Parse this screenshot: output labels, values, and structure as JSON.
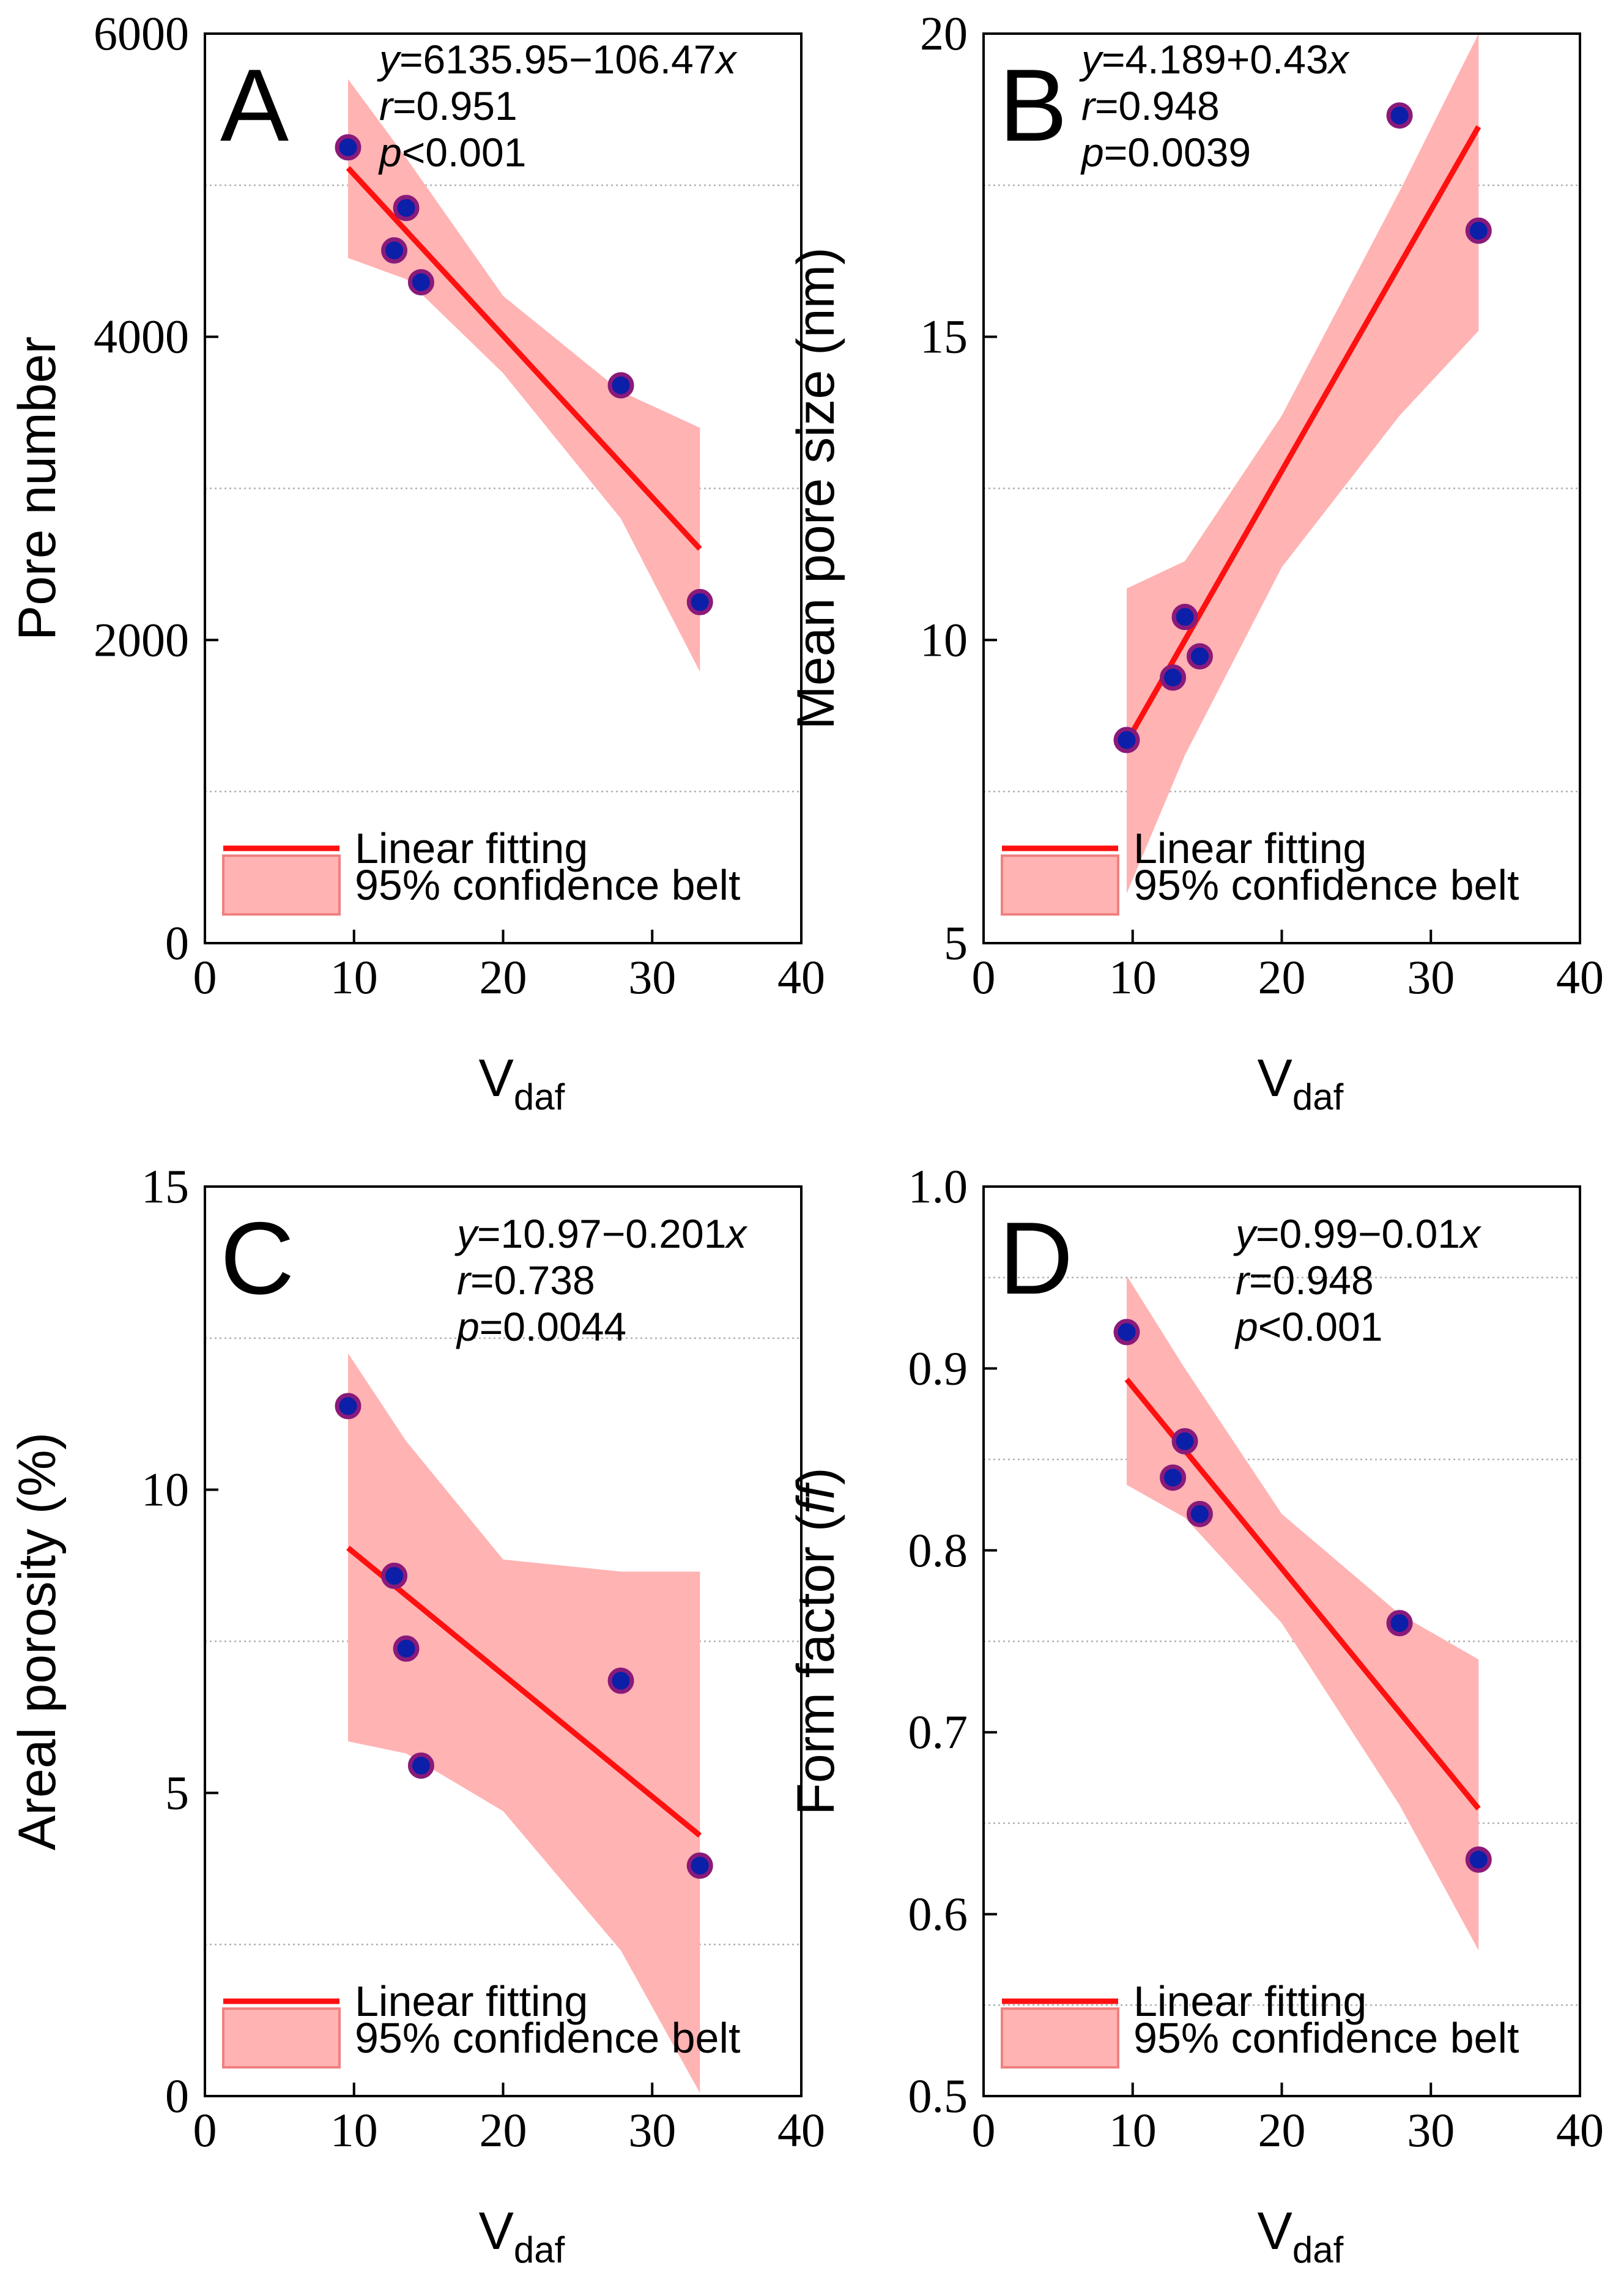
{
  "style": {
    "fit_color": "#ff1010",
    "band_fill": "#ffb3b3",
    "band_stroke": "#f08080",
    "point_fill": "#0b1fa8",
    "point_stroke": "#8a1a7a",
    "grid_color": "#b0b0b0"
  },
  "chart_data": [
    {
      "id": "A",
      "type": "scatter",
      "panel_letter": "A",
      "ylabel": "Pore number",
      "xlabel_main": "V",
      "xlabel_sub": "daf",
      "xlim": [
        0,
        40
      ],
      "ylim": [
        0,
        6000
      ],
      "xticks": [
        0,
        10,
        20,
        30,
        40
      ],
      "xtick_labels": [
        "0",
        "10",
        "20",
        "30",
        "40"
      ],
      "yticks": [
        0,
        2000,
        4000,
        6000
      ],
      "ytick_labels": [
        "0",
        "2000",
        "4000",
        "6000"
      ],
      "grid_y": [
        1000,
        3000,
        5000
      ],
      "points": [
        [
          9.6,
          5250
        ],
        [
          12.7,
          4570
        ],
        [
          13.5,
          4850
        ],
        [
          14.5,
          4360
        ],
        [
          27.9,
          3680
        ],
        [
          33.2,
          2250
        ]
      ],
      "fit": {
        "intercept": 6135.95,
        "slope": -106.47,
        "x_range": [
          9.6,
          33.2
        ]
      },
      "band": {
        "x": [
          9.6,
          13.5,
          20,
          27.9,
          33.2
        ],
        "lower": [
          4520,
          4380,
          3760,
          2800,
          1790
        ],
        "upper": [
          5700,
          5180,
          4270,
          3640,
          3400
        ]
      },
      "equation": {
        "y_var": "y",
        "eq_body": "=6135.95−106.47",
        "x_var": "x",
        "r_var": "r",
        "r_value": "=0.951",
        "p_var": "p",
        "p_value": "<0.001"
      },
      "legend": {
        "line_label": "Linear fitting",
        "band_label": "95% confidence belt"
      }
    },
    {
      "id": "B",
      "type": "scatter",
      "panel_letter": "B",
      "ylabel": "Mean pore size (nm)",
      "xlabel_main": "V",
      "xlabel_sub": "daf",
      "xlim": [
        0,
        40
      ],
      "ylim": [
        5,
        20
      ],
      "xticks": [
        0,
        10,
        20,
        30,
        40
      ],
      "xtick_labels": [
        "0",
        "10",
        "20",
        "30",
        "40"
      ],
      "yticks": [
        5,
        10,
        15,
        20
      ],
      "ytick_labels": [
        "5",
        "10",
        "15",
        "20"
      ],
      "grid_y": [
        7.5,
        12.5,
        17.5
      ],
      "points": [
        [
          9.6,
          8.35
        ],
        [
          12.7,
          9.38
        ],
        [
          13.5,
          10.38
        ],
        [
          14.5,
          9.73
        ],
        [
          27.9,
          18.65
        ],
        [
          33.2,
          16.75
        ]
      ],
      "fit": {
        "intercept": 4.189,
        "slope": 0.43,
        "x_range": [
          9.6,
          33.2
        ]
      },
      "band": {
        "x": [
          9.6,
          13.5,
          20,
          27.9,
          33.2
        ],
        "lower": [
          5.82,
          8.1,
          11.2,
          13.7,
          15.1
        ],
        "upper": [
          10.85,
          11.3,
          13.7,
          17.4,
          20.0
        ]
      },
      "equation": {
        "y_var": "y",
        "eq_body": "=4.189+0.43",
        "x_var": "x",
        "r_var": "r",
        "r_value": "=0.948",
        "p_var": "p",
        "p_value": "=0.0039"
      },
      "legend": {
        "line_label": "Linear fitting",
        "band_label": "95% confidence belt"
      }
    },
    {
      "id": "C",
      "type": "scatter",
      "panel_letter": "C",
      "ylabel": "Areal porosity (%)",
      "xlabel_main": "V",
      "xlabel_sub": "daf",
      "xlim": [
        0,
        40
      ],
      "ylim": [
        0,
        15
      ],
      "xticks": [
        0,
        10,
        20,
        30,
        40
      ],
      "xtick_labels": [
        "0",
        "10",
        "20",
        "30",
        "40"
      ],
      "yticks": [
        0,
        5,
        10,
        15
      ],
      "ytick_labels": [
        "0",
        "5",
        "10",
        "15"
      ],
      "grid_y": [
        2.5,
        7.5,
        12.5
      ],
      "points": [
        [
          9.6,
          11.38
        ],
        [
          12.7,
          8.58
        ],
        [
          13.5,
          7.38
        ],
        [
          14.5,
          5.45
        ],
        [
          27.9,
          6.85
        ],
        [
          33.2,
          3.8
        ]
      ],
      "fit": {
        "intercept": 10.97,
        "slope": -0.201,
        "x_range": [
          9.6,
          33.2
        ]
      },
      "band": {
        "x": [
          9.6,
          13.5,
          20,
          27.9,
          33.2
        ],
        "lower": [
          5.85,
          5.65,
          4.7,
          2.4,
          0.05
        ],
        "upper": [
          12.25,
          10.8,
          8.85,
          8.65,
          8.65
        ]
      },
      "equation": {
        "y_var": "y",
        "eq_body": "=10.97−0.201",
        "x_var": "x",
        "r_var": "r",
        "r_value": "=0.738",
        "p_var": "p",
        "p_value": "=0.0044"
      },
      "legend": {
        "line_label": "Linear fitting",
        "band_label": "95% confidence belt"
      }
    },
    {
      "id": "D",
      "type": "scatter",
      "panel_letter": "D",
      "ylabel": "Form factor (",
      "ylabel_italic": "ff",
      "ylabel_end": ")",
      "xlabel_main": "V",
      "xlabel_sub": "daf",
      "xlim": [
        0,
        40
      ],
      "ylim": [
        0.5,
        1.0
      ],
      "xticks": [
        0,
        10,
        20,
        30,
        40
      ],
      "xtick_labels": [
        "0",
        "10",
        "20",
        "30",
        "40"
      ],
      "yticks": [
        0.5,
        0.6,
        0.7,
        0.8,
        0.9,
        1.0
      ],
      "ytick_labels": [
        "0.5",
        "0.6",
        "0.7",
        "0.8",
        "0.9",
        "1.0"
      ],
      "grid_y": [
        0.55,
        0.65,
        0.75,
        0.85,
        0.95
      ],
      "points": [
        [
          9.6,
          0.92
        ],
        [
          12.7,
          0.84
        ],
        [
          13.5,
          0.86
        ],
        [
          14.5,
          0.82
        ],
        [
          27.9,
          0.76
        ],
        [
          33.2,
          0.63
        ]
      ],
      "fit": {
        "intercept": 0.99,
        "slope": -0.01,
        "x_range": [
          9.6,
          33.2
        ]
      },
      "band": {
        "x": [
          9.6,
          13.5,
          20,
          27.9,
          33.2
        ],
        "lower": [
          0.836,
          0.818,
          0.76,
          0.66,
          0.58
        ],
        "upper": [
          0.951,
          0.9,
          0.82,
          0.765,
          0.74
        ]
      },
      "equation": {
        "y_var": "y",
        "eq_body": "=0.99−0.01",
        "x_var": "x",
        "r_var": "r",
        "r_value": "=0.948",
        "p_var": "p",
        "p_value": "<0.001"
      },
      "legend": {
        "line_label": "Linear fitting",
        "band_label": "95% confidence belt"
      }
    }
  ]
}
